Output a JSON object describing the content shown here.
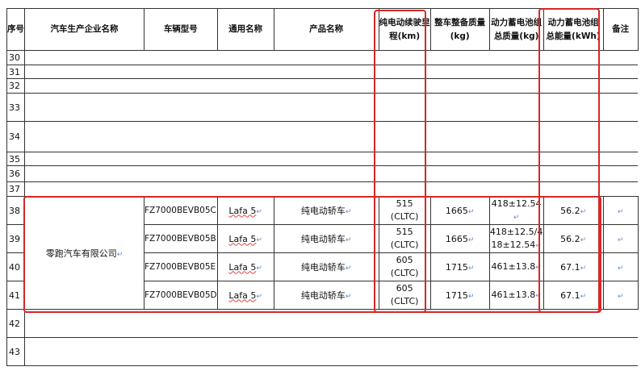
{
  "headers": [
    "序号",
    "汽车生产企业名称",
    "车辆型号",
    "通用名称",
    "产品名称",
    "纯电动续驶里程(km)",
    "整车整备质量(kg)",
    "动力蓄电池组总质量(kg)",
    "动力蓄电池组总能量(kWh)",
    "备注"
  ],
  "blurred_rows": [
    "30",
    "31",
    "32",
    "33",
    "34",
    "35",
    "36",
    "37"
  ],
  "company": "零跑汽车有限公司",
  "rows": [
    {
      "no": "38",
      "model": "FZ7000BEVB05C",
      "common": "Lafa 5",
      "product": "纯电动轿车",
      "range": "515",
      "range_std": "(CLTC)",
      "curb": "1665",
      "bmass": "418±12.54",
      "energy": "56.2",
      "remark": ""
    },
    {
      "no": "39",
      "model": "FZ7000BEVB05B",
      "common": "Lafa 5",
      "product": "纯电动轿车",
      "range": "515",
      "range_std": "(CLTC)",
      "curb": "1665",
      "bmass": "418±12.5/418±12.54",
      "energy": "56.2",
      "remark": ""
    },
    {
      "no": "40",
      "model": "FZ7000BEVB05E",
      "common": "Lafa 5",
      "product": "纯电动轿车",
      "range": "605",
      "range_std": "(CLTC)",
      "curb": "1715",
      "bmass": "461±13.8",
      "energy": "67.1",
      "remark": ""
    },
    {
      "no": "41",
      "model": "FZ7000BEVB05D",
      "common": "Lafa 5",
      "product": "纯电动轿车",
      "range": "605",
      "range_std": "(CLTC)",
      "curb": "1715",
      "bmass": "461±13.8",
      "energy": "67.1",
      "remark": ""
    }
  ],
  "tail_rows": [
    "42",
    "43"
  ],
  "highlight_color": "#d62828",
  "return_mark": "↵"
}
